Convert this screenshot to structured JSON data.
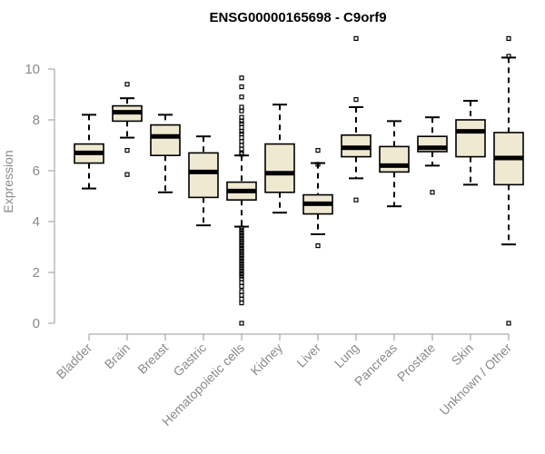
{
  "chart_data": {
    "type": "box",
    "title": "ENSG00000165698 - C9orf9",
    "ylabel": "Expression",
    "ylim": [
      0,
      11.5
    ],
    "yticks": [
      0,
      2,
      4,
      6,
      8,
      10
    ],
    "box_fill": "#efe9d2",
    "categories": [
      "Bladder",
      "Brain",
      "Breast",
      "Gastric",
      "Hematopoietic cells",
      "Kidney",
      "Liver",
      "Lung",
      "Pancreas",
      "Prostate",
      "Skin",
      "Unknown / Other"
    ],
    "boxes": [
      {
        "min": 5.3,
        "q1": 6.3,
        "median": 6.7,
        "q3": 7.05,
        "max": 8.2,
        "outliers": []
      },
      {
        "min": 7.3,
        "q1": 7.95,
        "median": 8.3,
        "q3": 8.55,
        "max": 8.85,
        "outliers": [
          9.4,
          6.8,
          5.85
        ]
      },
      {
        "min": 5.15,
        "q1": 6.6,
        "median": 7.35,
        "q3": 7.8,
        "max": 8.2,
        "outliers": []
      },
      {
        "min": 3.85,
        "q1": 4.95,
        "median": 5.95,
        "q3": 6.7,
        "max": 7.35,
        "outliers": []
      },
      {
        "min": 3.8,
        "q1": 4.85,
        "median": 5.2,
        "q3": 5.55,
        "max": 6.6,
        "outliers": [
          9.65,
          9.3,
          8.9,
          8.5,
          8.35,
          8.1,
          7.95,
          7.85,
          7.7,
          7.55,
          7.45,
          7.3,
          7.15,
          7.0,
          6.85,
          6.7,
          6.65,
          3.75,
          3.65,
          3.55,
          3.45,
          3.35,
          3.25,
          3.15,
          3.05,
          2.95,
          2.85,
          2.75,
          2.65,
          2.55,
          2.45,
          2.35,
          2.25,
          2.15,
          2.05,
          1.95,
          1.85,
          1.75,
          1.6,
          1.45,
          1.25,
          1.1,
          0.95,
          0.8,
          0.0
        ]
      },
      {
        "min": 4.35,
        "q1": 5.15,
        "median": 5.9,
        "q3": 7.05,
        "max": 8.6,
        "outliers": []
      },
      {
        "min": 3.5,
        "q1": 4.3,
        "median": 4.7,
        "q3": 5.05,
        "max": 6.3,
        "outliers": [
          6.8,
          6.25,
          3.05
        ]
      },
      {
        "min": 5.7,
        "q1": 6.55,
        "median": 6.9,
        "q3": 7.4,
        "max": 8.5,
        "outliers": [
          11.2,
          8.8,
          4.85
        ]
      },
      {
        "min": 4.6,
        "q1": 5.95,
        "median": 6.2,
        "q3": 6.95,
        "max": 7.95,
        "outliers": []
      },
      {
        "min": 6.2,
        "q1": 6.75,
        "median": 6.9,
        "q3": 7.35,
        "max": 8.1,
        "outliers": [
          5.15
        ]
      },
      {
        "min": 5.45,
        "q1": 6.55,
        "median": 7.55,
        "q3": 8.0,
        "max": 8.75,
        "outliers": []
      },
      {
        "min": 3.1,
        "q1": 5.45,
        "median": 6.5,
        "q3": 7.5,
        "max": 10.45,
        "outliers": [
          11.2,
          10.5,
          0.0
        ]
      }
    ]
  }
}
